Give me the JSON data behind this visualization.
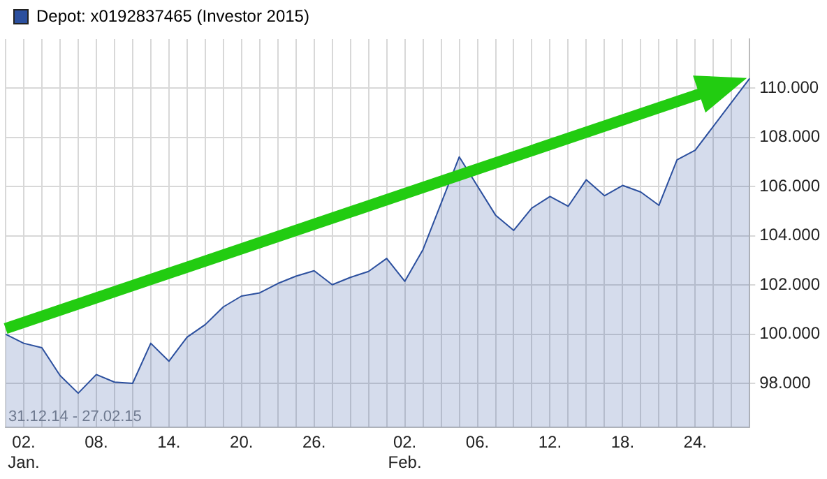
{
  "chart_data": {
    "type": "area",
    "categories": [
      null,
      "02.\nJan.",
      null,
      null,
      null,
      "08.",
      null,
      null,
      null,
      "14.",
      null,
      null,
      null,
      "20.",
      null,
      null,
      null,
      "26.",
      null,
      null,
      null,
      null,
      "02.\nFeb.",
      null,
      null,
      null,
      "06.",
      null,
      null,
      null,
      "12.",
      null,
      null,
      null,
      "18.",
      null,
      null,
      null,
      "24.",
      null,
      null,
      null
    ],
    "series": [
      {
        "name": "Depot: x0192837465 (Investor 2015)",
        "color": "#2b4f9e",
        "values": [
          100000,
          99630,
          99450,
          98320,
          97600,
          98360,
          98050,
          98000,
          99630,
          98900,
          99880,
          100390,
          101110,
          101550,
          101680,
          102060,
          102360,
          102580,
          102010,
          102310,
          102550,
          103080,
          102150,
          103440,
          null,
          107210,
          null,
          104840,
          104220,
          105130,
          105600,
          105200,
          106280,
          105630,
          106050,
          105780,
          105240,
          107090,
          107480,
          null,
          null,
          110400
        ]
      }
    ],
    "ylim": [
      96200,
      112000
    ],
    "yticks": [
      {
        "value": 98000,
        "label": "98.000"
      },
      {
        "value": 100000,
        "label": "100.000"
      },
      {
        "value": 102000,
        "label": "102.000"
      },
      {
        "value": 104000,
        "label": "104.000"
      },
      {
        "value": 106000,
        "label": "106.000"
      },
      {
        "value": 108000,
        "label": "108.000"
      },
      {
        "value": 110000,
        "label": "110.000"
      }
    ],
    "grid": true,
    "legend": "top left",
    "marker": "none",
    "line_style": "solid",
    "annotations": [
      "31.12.14 - 27.02.15"
    ]
  }
}
